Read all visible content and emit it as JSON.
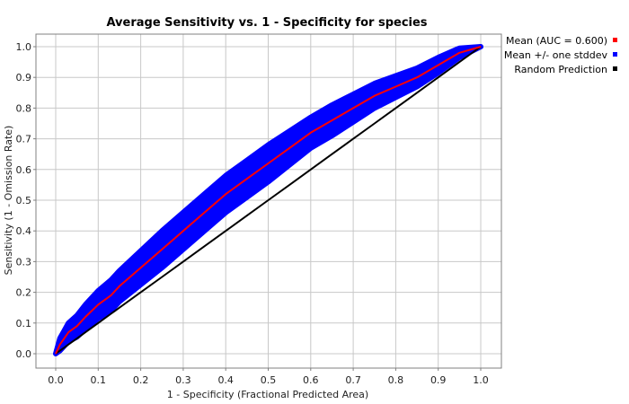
{
  "chart_data": {
    "type": "line",
    "title": "Average Sensitivity vs. 1 - Specificity for species",
    "xlabel": "1 - Specificity (Fractional Predicted Area)",
    "ylabel": "Sensitivity (1 - Omission Rate)",
    "xlim": [
      0.0,
      1.0
    ],
    "ylim": [
      0.0,
      1.0
    ],
    "x_ticks": [
      "0.0",
      "0.1",
      "0.2",
      "0.3",
      "0.4",
      "0.5",
      "0.6",
      "0.7",
      "0.8",
      "0.9",
      "1.0"
    ],
    "y_ticks": [
      "0.0",
      "0.1",
      "0.2",
      "0.3",
      "0.4",
      "0.5",
      "0.6",
      "0.7",
      "0.8",
      "0.9",
      "1.0"
    ],
    "grid": true,
    "legend_position": "top-right, outside plot",
    "x": [
      0.0,
      0.01,
      0.02,
      0.03,
      0.05,
      0.07,
      0.1,
      0.13,
      0.15,
      0.2,
      0.25,
      0.3,
      0.35,
      0.4,
      0.45,
      0.5,
      0.55,
      0.6,
      0.65,
      0.7,
      0.75,
      0.8,
      0.85,
      0.9,
      0.95,
      1.0
    ],
    "series": [
      {
        "name": "Mean (AUC = 0.600)",
        "color": "#ff0000",
        "values": [
          0.0,
          0.03,
          0.05,
          0.07,
          0.09,
          0.12,
          0.16,
          0.19,
          0.22,
          0.28,
          0.34,
          0.4,
          0.46,
          0.52,
          0.57,
          0.62,
          0.67,
          0.72,
          0.76,
          0.8,
          0.84,
          0.87,
          0.9,
          0.94,
          0.98,
          1.0
        ]
      },
      {
        "name": "Mean +/- one stddev",
        "color": "#0000ff",
        "band_width": [
          0.0,
          0.02,
          0.025,
          0.03,
          0.035,
          0.04,
          0.045,
          0.05,
          0.05,
          0.055,
          0.06,
          0.06,
          0.06,
          0.06,
          0.06,
          0.06,
          0.055,
          0.05,
          0.05,
          0.045,
          0.04,
          0.035,
          0.03,
          0.025,
          0.015,
          0.0
        ]
      },
      {
        "name": "Random Prediction",
        "color": "#000000",
        "values": [
          0.0,
          0.01,
          0.02,
          0.03,
          0.05,
          0.07,
          0.1,
          0.13,
          0.15,
          0.2,
          0.25,
          0.3,
          0.35,
          0.4,
          0.45,
          0.5,
          0.55,
          0.6,
          0.65,
          0.7,
          0.75,
          0.8,
          0.85,
          0.9,
          0.95,
          1.0
        ]
      }
    ]
  }
}
